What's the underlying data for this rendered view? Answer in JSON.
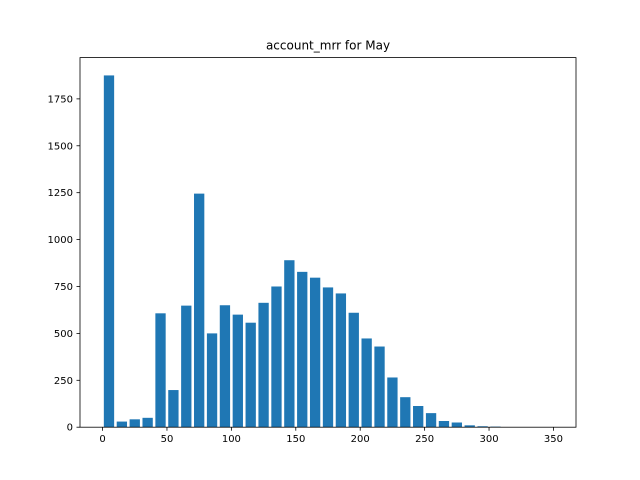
{
  "chart_data": {
    "type": "bar",
    "title": "account_mrr for May",
    "xlabel": "",
    "ylabel": "",
    "xlim": [
      -17.5,
      367.5
    ],
    "ylim": [
      0,
      1970
    ],
    "bar_width": 8,
    "x_ticks": [
      0,
      50,
      100,
      150,
      200,
      250,
      300,
      350
    ],
    "y_ticks": [
      0,
      250,
      500,
      750,
      1000,
      1250,
      1500,
      1750
    ],
    "x": [
      5,
      15,
      25,
      35,
      45,
      55,
      65,
      75,
      85,
      95,
      105,
      115,
      125,
      135,
      145,
      155,
      165,
      175,
      185,
      195,
      205,
      215,
      225,
      235,
      245,
      255,
      265,
      275,
      285,
      295,
      305,
      315,
      325,
      335,
      345
    ],
    "values": [
      1875,
      30,
      42,
      50,
      607,
      198,
      648,
      1245,
      500,
      650,
      600,
      557,
      663,
      750,
      890,
      828,
      797,
      745,
      713,
      610,
      473,
      430,
      265,
      160,
      113,
      75,
      33,
      25,
      10,
      5,
      3,
      0,
      0,
      0,
      0
    ],
    "grid": false,
    "legend": "none",
    "bar_color": "#1f77b4"
  }
}
